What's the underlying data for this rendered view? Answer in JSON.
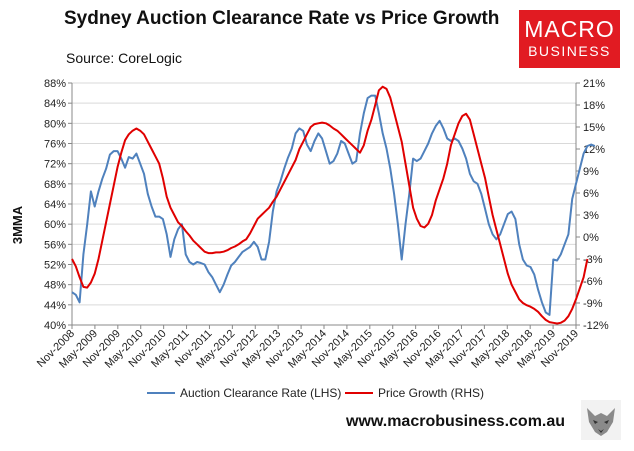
{
  "header": {
    "title": "Sydney Auction Clearance Rate vs Price Growth",
    "source": "Source: CoreLogic"
  },
  "brand": {
    "line1": "MACRO",
    "line2": "BUSINESS",
    "color": "#e11b22"
  },
  "footer": {
    "url": "www.macrobusiness.com.au"
  },
  "chart_data": {
    "type": "line",
    "ylabel": "3MMA",
    "x_tick_labels": [
      "Nov-2008",
      "May-2009",
      "Nov-2009",
      "May-2010",
      "Nov-2010",
      "May-2011",
      "Nov-2011",
      "May-2012",
      "Nov-2012",
      "May-2013",
      "Nov-2013",
      "May-2014",
      "Nov-2014",
      "May-2015",
      "Nov-2015",
      "May-2016",
      "Nov-2016",
      "May-2017",
      "Nov-2017",
      "May-2018",
      "Nov-2018",
      "May-2019",
      "Nov-2019"
    ],
    "y_left": {
      "ticks": [
        "40%",
        "44%",
        "48%",
        "52%",
        "56%",
        "60%",
        "64%",
        "68%",
        "72%",
        "76%",
        "80%",
        "84%",
        "88%"
      ],
      "range": [
        40,
        88
      ]
    },
    "y_right": {
      "ticks": [
        "-12%",
        "-9%",
        "-6%",
        "-3%",
        "0%",
        "3%",
        "6%",
        "9%",
        "12%",
        "15%",
        "18%",
        "21%"
      ],
      "range": [
        -12,
        21
      ]
    },
    "x_range": [
      0,
      133
    ],
    "grid": true,
    "legend_position": "bottom",
    "series": [
      {
        "name": "Auction Clearance Rate (LHS)",
        "axis": "left",
        "color": "#4f81bd",
        "points": [
          [
            0,
            46.5
          ],
          [
            1,
            46
          ],
          [
            2,
            44.5
          ],
          [
            3,
            54
          ],
          [
            4,
            60
          ],
          [
            5,
            66.5
          ],
          [
            6,
            63.5
          ],
          [
            7,
            66.5
          ],
          [
            8,
            69
          ],
          [
            9,
            71
          ],
          [
            10,
            73.8
          ],
          [
            11,
            74.5
          ],
          [
            12,
            74.5
          ],
          [
            13,
            73
          ],
          [
            14,
            71.2
          ],
          [
            15,
            73.3
          ],
          [
            16,
            73
          ],
          [
            17,
            74
          ],
          [
            18,
            72
          ],
          [
            19,
            70
          ],
          [
            20,
            66
          ],
          [
            21,
            63.5
          ],
          [
            22,
            61.5
          ],
          [
            23,
            61.5
          ],
          [
            24,
            61
          ],
          [
            25,
            58
          ],
          [
            26,
            53.5
          ],
          [
            27,
            57
          ],
          [
            28,
            59
          ],
          [
            29,
            60
          ],
          [
            30,
            54
          ],
          [
            31,
            52.5
          ],
          [
            32,
            52
          ],
          [
            33,
            52.5
          ],
          [
            34,
            52.3
          ],
          [
            35,
            52
          ],
          [
            36,
            50.5
          ],
          [
            37,
            49.5
          ],
          [
            38,
            48
          ],
          [
            39,
            46.5
          ],
          [
            40,
            48
          ],
          [
            41,
            50
          ],
          [
            42,
            51.8
          ],
          [
            43,
            52.5
          ],
          [
            44,
            53.5
          ],
          [
            45,
            54.5
          ],
          [
            46,
            55
          ],
          [
            47,
            55.5
          ],
          [
            48,
            56.5
          ],
          [
            49,
            55.5
          ],
          [
            50,
            53
          ],
          [
            51,
            53
          ],
          [
            52,
            56.5
          ],
          [
            53,
            62.5
          ],
          [
            54,
            66.5
          ],
          [
            55,
            68.5
          ],
          [
            56,
            71
          ],
          [
            57,
            73.2
          ],
          [
            58,
            75
          ],
          [
            59,
            78
          ],
          [
            60,
            79
          ],
          [
            61,
            78.5
          ],
          [
            62,
            75.8
          ],
          [
            63,
            74.5
          ],
          [
            64,
            76.5
          ],
          [
            65,
            78
          ],
          [
            66,
            77
          ],
          [
            67,
            74.5
          ],
          [
            68,
            72
          ],
          [
            69,
            72.5
          ],
          [
            70,
            74
          ],
          [
            71,
            76.5
          ],
          [
            72,
            76
          ],
          [
            73,
            74
          ],
          [
            74,
            72
          ],
          [
            75,
            72.5
          ],
          [
            76,
            78
          ],
          [
            77,
            82
          ],
          [
            78,
            85
          ],
          [
            79,
            85.5
          ],
          [
            80,
            85.5
          ],
          [
            81,
            82
          ],
          [
            82,
            78
          ],
          [
            83,
            75
          ],
          [
            84,
            71
          ],
          [
            85,
            66
          ],
          [
            86,
            60
          ],
          [
            87,
            53
          ],
          [
            88,
            60
          ],
          [
            89,
            66
          ],
          [
            90,
            73
          ],
          [
            91,
            72.5
          ],
          [
            92,
            73
          ],
          [
            93,
            74.5
          ],
          [
            94,
            76
          ],
          [
            95,
            78
          ],
          [
            96,
            79.5
          ],
          [
            97,
            80.5
          ],
          [
            98,
            79
          ],
          [
            99,
            77
          ],
          [
            100,
            76.5
          ],
          [
            101,
            77
          ],
          [
            102,
            76.5
          ],
          [
            103,
            75
          ],
          [
            104,
            73
          ],
          [
            105,
            70
          ],
          [
            106,
            68.5
          ],
          [
            107,
            68
          ],
          [
            108,
            66
          ],
          [
            109,
            63
          ],
          [
            110,
            60
          ],
          [
            111,
            58
          ],
          [
            112,
            57
          ],
          [
            113,
            58
          ],
          [
            114,
            60
          ],
          [
            115,
            62
          ],
          [
            116,
            62.5
          ],
          [
            117,
            61
          ],
          [
            118,
            56
          ],
          [
            119,
            53
          ],
          [
            120,
            51.8
          ],
          [
            121,
            51.5
          ],
          [
            122,
            50
          ],
          [
            123,
            47
          ],
          [
            124,
            44.5
          ],
          [
            125,
            42.5
          ],
          [
            126,
            42
          ],
          [
            127,
            53
          ],
          [
            128,
            52.8
          ],
          [
            129,
            54
          ],
          [
            130,
            56
          ],
          [
            131,
            58
          ],
          [
            132,
            65
          ],
          [
            133,
            68
          ],
          [
            134,
            71
          ],
          [
            135,
            74
          ],
          [
            136,
            75.5
          ],
          [
            137,
            75.8
          ],
          [
            138,
            75.5
          ]
        ]
      },
      {
        "name": "Price Growth (RHS)",
        "axis": "right",
        "color": "#e00000",
        "points": [
          [
            0,
            -3
          ],
          [
            1,
            -4
          ],
          [
            2,
            -5.5
          ],
          [
            3,
            -6.8
          ],
          [
            4,
            -6.9
          ],
          [
            5,
            -6.2
          ],
          [
            6,
            -5
          ],
          [
            7,
            -3
          ],
          [
            8,
            -0.5
          ],
          [
            9,
            2
          ],
          [
            10,
            4.5
          ],
          [
            11,
            7
          ],
          [
            12,
            9.5
          ],
          [
            13,
            11.5
          ],
          [
            14,
            13.2
          ],
          [
            15,
            14
          ],
          [
            16,
            14.5
          ],
          [
            17,
            14.8
          ],
          [
            18,
            14.5
          ],
          [
            19,
            14
          ],
          [
            20,
            13
          ],
          [
            21,
            12
          ],
          [
            22,
            11
          ],
          [
            23,
            10
          ],
          [
            24,
            8
          ],
          [
            25,
            5.5
          ],
          [
            26,
            4
          ],
          [
            27,
            3
          ],
          [
            28,
            2
          ],
          [
            29,
            1.5
          ],
          [
            30,
            0.8
          ],
          [
            31,
            0.2
          ],
          [
            32,
            -0.5
          ],
          [
            33,
            -1
          ],
          [
            34,
            -1.5
          ],
          [
            35,
            -2
          ],
          [
            36,
            -2.2
          ],
          [
            37,
            -2.2
          ],
          [
            38,
            -2.1
          ],
          [
            39,
            -2.1
          ],
          [
            40,
            -2
          ],
          [
            41,
            -1.8
          ],
          [
            42,
            -1.5
          ],
          [
            43,
            -1.3
          ],
          [
            44,
            -1
          ],
          [
            45,
            -0.6
          ],
          [
            46,
            -0.3
          ],
          [
            47,
            0.5
          ],
          [
            48,
            1.5
          ],
          [
            49,
            2.5
          ],
          [
            50,
            3
          ],
          [
            51,
            3.5
          ],
          [
            52,
            4
          ],
          [
            53,
            4.8
          ],
          [
            54,
            5.5
          ],
          [
            55,
            6.5
          ],
          [
            56,
            7.5
          ],
          [
            57,
            8.5
          ],
          [
            58,
            9.5
          ],
          [
            59,
            10.5
          ],
          [
            60,
            12
          ],
          [
            61,
            13
          ],
          [
            62,
            14
          ],
          [
            63,
            15
          ],
          [
            64,
            15.4
          ],
          [
            65,
            15.5
          ],
          [
            66,
            15.6
          ],
          [
            67,
            15.5
          ],
          [
            68,
            15.2
          ],
          [
            69,
            14.8
          ],
          [
            70,
            14.5
          ],
          [
            71,
            14
          ],
          [
            72,
            13.5
          ],
          [
            73,
            13
          ],
          [
            74,
            12.5
          ],
          [
            75,
            12
          ],
          [
            76,
            11.5
          ],
          [
            77,
            12.5
          ],
          [
            78,
            14.5
          ],
          [
            79,
            16
          ],
          [
            80,
            18
          ],
          [
            81,
            20
          ],
          [
            82,
            20.5
          ],
          [
            83,
            20.2
          ],
          [
            84,
            19
          ],
          [
            85,
            17
          ],
          [
            86,
            15
          ],
          [
            87,
            13
          ],
          [
            88,
            10
          ],
          [
            89,
            7
          ],
          [
            90,
            4
          ],
          [
            91,
            2.5
          ],
          [
            92,
            1.5
          ],
          [
            93,
            1.3
          ],
          [
            94,
            1.8
          ],
          [
            95,
            3
          ],
          [
            96,
            5
          ],
          [
            97,
            6.5
          ],
          [
            98,
            8
          ],
          [
            99,
            10
          ],
          [
            100,
            12.5
          ],
          [
            101,
            14
          ],
          [
            102,
            15.5
          ],
          [
            103,
            16.5
          ],
          [
            104,
            16.8
          ],
          [
            105,
            16
          ],
          [
            106,
            14
          ],
          [
            107,
            12
          ],
          [
            108,
            10
          ],
          [
            109,
            8
          ],
          [
            110,
            5.5
          ],
          [
            111,
            3
          ],
          [
            112,
            1
          ],
          [
            113,
            -1
          ],
          [
            114,
            -3
          ],
          [
            115,
            -5
          ],
          [
            116,
            -6.5
          ],
          [
            117,
            -7.5
          ],
          [
            118,
            -8.5
          ],
          [
            119,
            -9
          ],
          [
            120,
            -9.3
          ],
          [
            121,
            -9.5
          ],
          [
            122,
            -9.8
          ],
          [
            123,
            -10.2
          ],
          [
            124,
            -10.8
          ],
          [
            125,
            -11.3
          ],
          [
            126,
            -11.6
          ],
          [
            127,
            -11.7
          ],
          [
            128,
            -11.8
          ],
          [
            129,
            -11.7
          ],
          [
            130,
            -11.4
          ],
          [
            131,
            -10.8
          ],
          [
            132,
            -9.8
          ],
          [
            133,
            -8.5
          ],
          [
            134,
            -7
          ],
          [
            135,
            -5.5
          ],
          [
            136,
            -3
          ]
        ]
      }
    ]
  }
}
